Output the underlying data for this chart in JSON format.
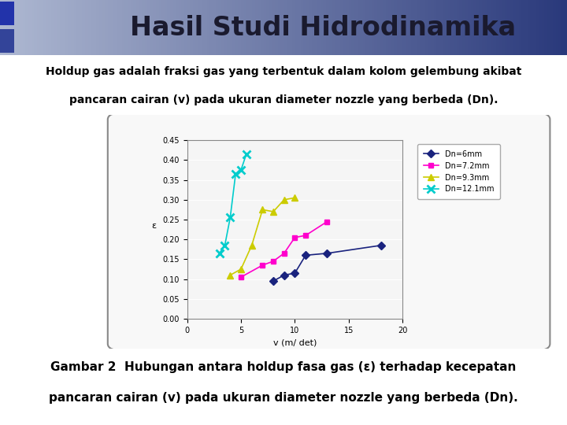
{
  "title": "Hasil Studi Hidrodinamika",
  "subtitle_line1": "Holdup gas adalah fraksi gas yang terbentuk dalam kolom gelembung akibat",
  "subtitle_line2": "pancaran cairan (v) pada ukuran diameter nozzle yang berbeda (Dn).",
  "caption_line1": "Gambar 2  Hubungan antara holdup fasa gas (ε) terhadap kecepatan",
  "caption_line2": "pancaran cairan (v) pada ukuran diameter nozzle yang berbeda (Dn).",
  "xlabel": "v (m/ det)",
  "ylabel": "ε",
  "xlim": [
    0,
    20
  ],
  "ylim": [
    0,
    0.45
  ],
  "yticks": [
    0,
    0.05,
    0.1,
    0.15,
    0.2,
    0.25,
    0.3,
    0.35,
    0.4,
    0.45
  ],
  "xticks": [
    0,
    5,
    10,
    15,
    20
  ],
  "series": [
    {
      "label": "Dn=6mm",
      "color": "#1a237e",
      "marker": "D",
      "markersize": 5,
      "x": [
        8,
        9,
        10,
        11,
        13,
        18
      ],
      "y": [
        0.095,
        0.11,
        0.115,
        0.16,
        0.165,
        0.185
      ]
    },
    {
      "label": "Dn=7.2mm",
      "color": "#ff00cc",
      "marker": "s",
      "markersize": 5,
      "x": [
        5,
        7,
        8,
        9,
        10,
        11,
        13
      ],
      "y": [
        0.105,
        0.135,
        0.145,
        0.165,
        0.205,
        0.21,
        0.245
      ]
    },
    {
      "label": "Dn=9.3mm",
      "color": "#cccc00",
      "marker": "^",
      "markersize": 6,
      "x": [
        4,
        5,
        6,
        7,
        8,
        9,
        10
      ],
      "y": [
        0.11,
        0.125,
        0.185,
        0.275,
        0.27,
        0.3,
        0.305
      ]
    },
    {
      "label": "Dn=12.1mm",
      "color": "#00cccc",
      "marker": "x",
      "markersize": 7,
      "markeredgewidth": 2,
      "x": [
        3,
        3.5,
        4,
        4.5,
        5,
        5.5
      ],
      "y": [
        0.165,
        0.185,
        0.255,
        0.365,
        0.375,
        0.415
      ]
    }
  ],
  "plot_bg_color": "#f5f5f5",
  "body_bg_color": "#ffffff",
  "title_text_color": "#1a1a2e",
  "title_gradient_left": "#b0b8d0",
  "title_gradient_right": "#2a3a7a"
}
